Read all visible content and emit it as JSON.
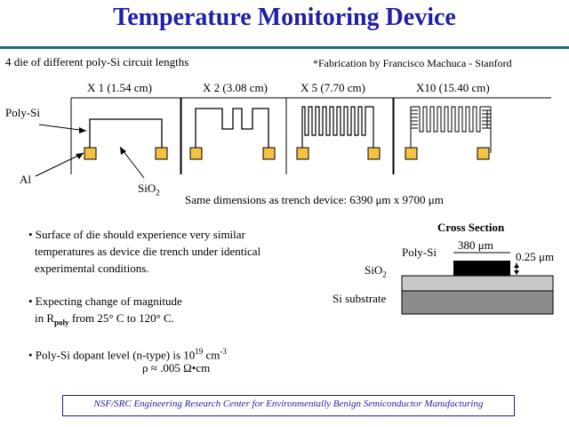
{
  "header": {
    "title": "Temperature Monitoring Device"
  },
  "intro": {
    "left": "4 die of different poly-Si circuit lengths",
    "credit": "*Fabrication by Francisco Machuca - Stanford"
  },
  "dies": [
    {
      "label": "X 1 (1.54 cm)"
    },
    {
      "label": "X 2 (3.08 cm)"
    },
    {
      "label": "X 5 (7.70 cm)"
    },
    {
      "label": "X10 (15.40 cm)"
    }
  ],
  "callouts": {
    "polysi": "Poly-Si",
    "al": "Al",
    "sio2_base": "SiO",
    "sio2_sub": "2"
  },
  "dimensions": {
    "text": "Same dimensions as trench device: 6390 μm x 9700 μm"
  },
  "bullets": {
    "b1_l1": "• Surface of die should experience very similar",
    "b1_l2": "temperatures as device die trench under identical",
    "b1_l3": "experimental conditions.",
    "b2_l1": "• Expecting change of magnitude",
    "b2_l2_a": "in R",
    "b2_l2_sub": "poly",
    "b2_l2_b": "from 25° C to 120° C.",
    "b3_l1_a": "• Poly-Si dopant level (n-type) is 10",
    "b3_l1_sup1": "19",
    "b3_l1_b": " cm",
    "b3_l1_sup2": "-3",
    "b3_l2": "ρ ≈ .005 Ω•cm"
  },
  "cross_section": {
    "title": "Cross Section",
    "width_label": "380 μm",
    "thickness_label": "0.25 μm",
    "polysi_label": "Poly-Si",
    "sio2_base": "SiO",
    "sio2_sub": "2",
    "substrate_label": "Si substrate"
  },
  "footer": {
    "text": "NSF/SRC Engineering Research Center for Environmentally Benign Semiconductor Manufacturing"
  },
  "colors": {
    "title": "#1f1fa8",
    "rule": "#1b6b6b",
    "pad": "#f5c242",
    "oxide": "#c8c8c8",
    "substrate": "#8c8c8c",
    "polysi": "#000000"
  }
}
